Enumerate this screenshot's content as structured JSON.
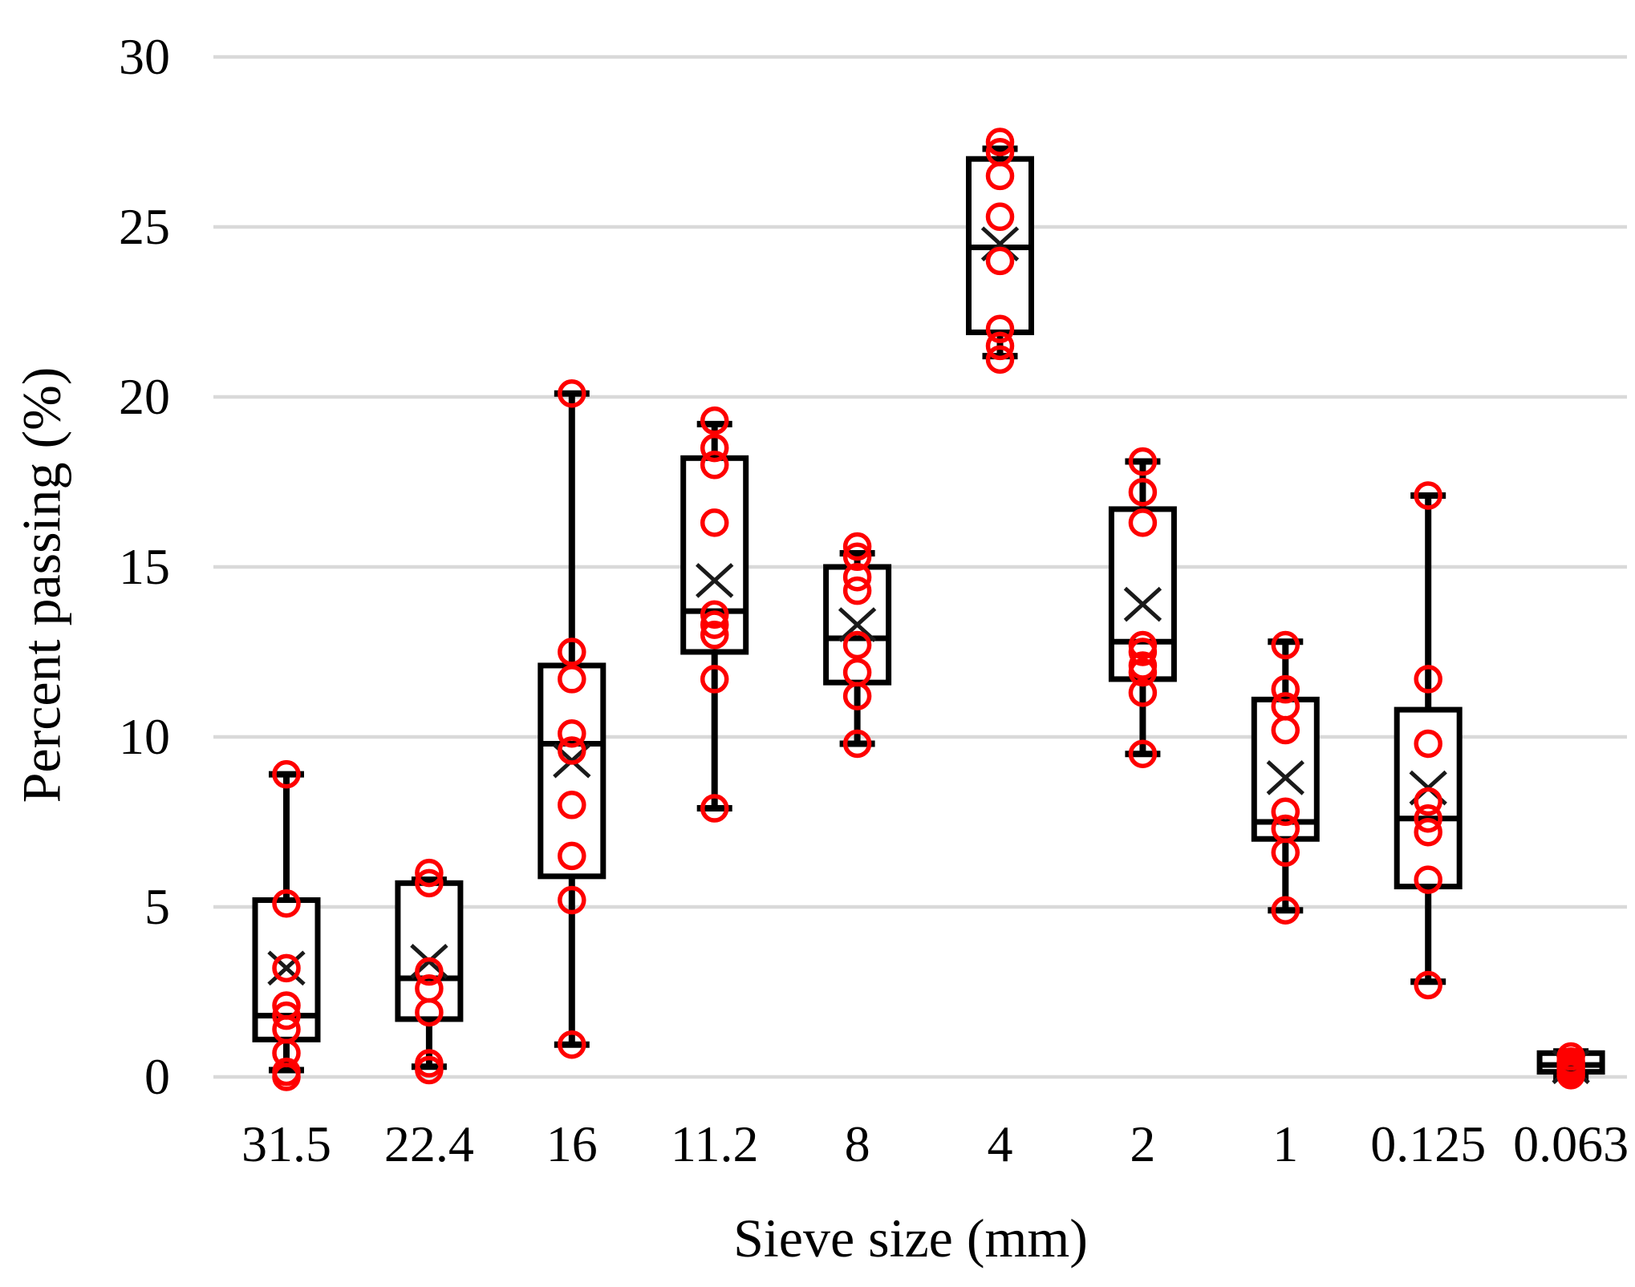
{
  "chart_data": {
    "type": "box",
    "title": "",
    "xlabel": "Sieve size (mm)",
    "ylabel": "Percent passing (%)",
    "ylim": [
      0,
      30
    ],
    "yticks": [
      0,
      5,
      10,
      15,
      20,
      25,
      30
    ],
    "grid": true,
    "legend": false,
    "categories": [
      "31.5",
      "22.4",
      "16",
      "11.2",
      "8",
      "4",
      "2",
      "1",
      "0.125",
      "0.063"
    ],
    "series": [
      {
        "category": "31.5",
        "min": 0.2,
        "q1": 1.1,
        "median": 1.8,
        "q3": 5.2,
        "max": 8.9,
        "mean": 3.2,
        "points": [
          8.9,
          5.1,
          3.2,
          2.1,
          1.8,
          1.4,
          0.7,
          0.15,
          0.0
        ]
      },
      {
        "category": "22.4",
        "min": 0.3,
        "q1": 1.7,
        "median": 2.9,
        "q3": 5.7,
        "max": 5.8,
        "mean": 3.4,
        "points": [
          6.0,
          5.7,
          3.1,
          2.6,
          1.9,
          0.4,
          0.2
        ]
      },
      {
        "category": "16",
        "min": 0.95,
        "q1": 5.9,
        "median": 9.8,
        "q3": 12.1,
        "max": 20.1,
        "mean": 9.3,
        "points": [
          20.1,
          12.5,
          11.7,
          10.1,
          9.6,
          8.0,
          6.5,
          5.2,
          0.95
        ]
      },
      {
        "category": "11.2",
        "min": 7.9,
        "q1": 12.5,
        "median": 13.7,
        "q3": 18.2,
        "max": 19.2,
        "mean": 14.6,
        "points": [
          19.3,
          18.5,
          18.0,
          16.3,
          13.6,
          13.3,
          13.0,
          11.7,
          7.9
        ]
      },
      {
        "category": "8",
        "min": 9.8,
        "q1": 11.6,
        "median": 12.9,
        "q3": 15.0,
        "max": 15.4,
        "mean": 13.3,
        "points": [
          15.6,
          15.3,
          14.7,
          14.3,
          12.7,
          11.9,
          11.2,
          9.8
        ]
      },
      {
        "category": "4",
        "min": 21.2,
        "q1": 21.9,
        "median": 24.4,
        "q3": 27.0,
        "max": 27.3,
        "mean": 24.5,
        "points": [
          27.5,
          27.2,
          26.5,
          25.3,
          24.0,
          22.0,
          21.5,
          21.1
        ]
      },
      {
        "category": "2",
        "min": 9.5,
        "q1": 11.7,
        "median": 12.8,
        "q3": 16.7,
        "max": 18.1,
        "mean": 13.9,
        "points": [
          18.1,
          17.2,
          16.3,
          12.7,
          12.5,
          12.1,
          11.9,
          11.3,
          9.5
        ]
      },
      {
        "category": "1",
        "min": 4.9,
        "q1": 7.0,
        "median": 7.5,
        "q3": 11.1,
        "max": 12.8,
        "mean": 8.8,
        "points": [
          12.7,
          11.4,
          10.9,
          10.2,
          7.8,
          7.3,
          6.6,
          4.9
        ]
      },
      {
        "category": "0.125",
        "min": 2.8,
        "q1": 5.6,
        "median": 7.6,
        "q3": 10.8,
        "max": 17.1,
        "mean": 8.5,
        "points": [
          17.1,
          11.7,
          9.8,
          8.1,
          7.6,
          7.2,
          5.8,
          2.7
        ]
      },
      {
        "category": "0.063",
        "min": 0.0,
        "q1": 0.15,
        "median": 0.35,
        "q3": 0.7,
        "max": 0.75,
        "mean": 0.3,
        "points": [
          0.6,
          0.45,
          0.35,
          0.25,
          0.15,
          0.05
        ]
      }
    ],
    "colors": {
      "box_stroke": "#000000",
      "box_fill": "#ffffff",
      "point_stroke": "#fe0000",
      "mean_marker": "#1a1a1a",
      "gridline": "#d9d9d9",
      "text": "#000000"
    }
  }
}
